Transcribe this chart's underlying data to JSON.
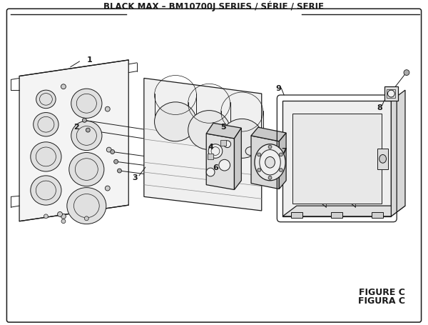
{
  "title": "BLACK MAX – BM10700J SERIES / SÉRIE / SERIE",
  "figure_label": "FIGURE C",
  "figura_label": "FIGURA C",
  "bg_color": "#ffffff",
  "line_color": "#1a1a1a",
  "title_fontsize": 8.5,
  "label_fontsize": 8,
  "fig_label_fontsize": 9
}
